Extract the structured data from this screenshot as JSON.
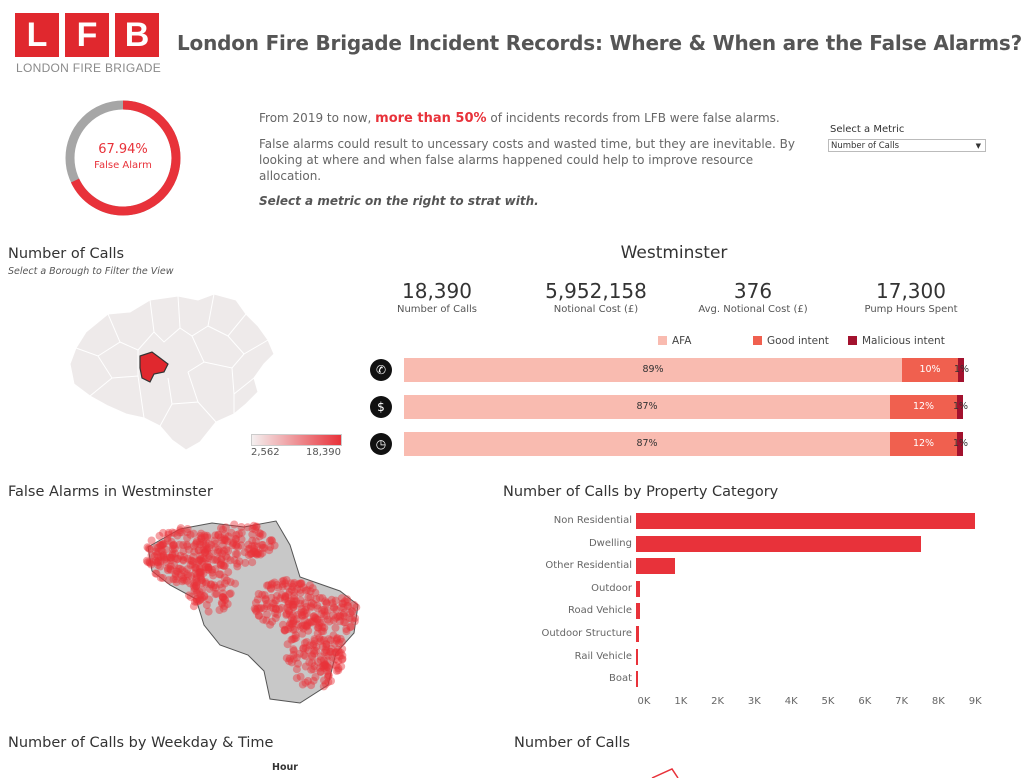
{
  "header": {
    "logo_letters": [
      "L",
      "F",
      "B"
    ],
    "logo_subtitle": "LONDON FIRE BRIGADE",
    "title": "London Fire Brigade Incident Records: Where & When are the False Alarms?"
  },
  "donut": {
    "value": 0.6794,
    "percent_text": "67.94%",
    "label": "False Alarm",
    "accent": "#e8323a",
    "track": "#a6a6a6"
  },
  "intro": {
    "line1_pre": "From 2019 to now, ",
    "line1_highlight": "more than 50%",
    "line1_post": " of incidents records from LFB were false alarms.",
    "line2": "False alarms could result to uncessary costs and wasted time, but they are inevitable. By looking at where and when false alarms happened could help to improve resource allocation.",
    "line3": "Select a metric on the right to strat with."
  },
  "metric_selector": {
    "label": "Select a Metric",
    "value": "Number of Calls"
  },
  "map_section": {
    "title": "Number of Calls",
    "subtitle": "Select a Borough to Filter  the View",
    "legend_min": "2,562",
    "legend_max": "18,390"
  },
  "borough": {
    "name": "Westminster",
    "kpis": [
      {
        "value": "18,390",
        "label": "Number of Calls"
      },
      {
        "value": "5,952,158",
        "label": "Notional Cost (£)"
      },
      {
        "value": "376",
        "label": "Avg. Notional Cost (£)"
      },
      {
        "value": "17,300",
        "label": "Pump Hours Spent"
      }
    ],
    "legend": [
      {
        "label": "AFA",
        "color": "#f9bbb0"
      },
      {
        "label": "Good intent",
        "color": "#f0604f"
      },
      {
        "label": "Malicious intent",
        "color": "#a3122e"
      }
    ],
    "rows": [
      {
        "icon": "phone-icon",
        "glyph": "✆",
        "values": [
          89,
          10,
          1
        ],
        "labels": [
          "89%",
          "10%",
          "1%"
        ]
      },
      {
        "icon": "money-icon",
        "glyph": "$",
        "values": [
          87,
          12,
          1
        ],
        "labels": [
          "87%",
          "12%",
          "1%"
        ]
      },
      {
        "icon": "clock-icon",
        "glyph": "◷",
        "values": [
          87,
          12,
          1
        ],
        "labels": [
          "87%",
          "12%",
          "1%"
        ]
      }
    ]
  },
  "false_alarms_map": {
    "title": "False Alarms in Westminster"
  },
  "property_chart": {
    "title": "Number of Calls by Property Category",
    "chart_data": {
      "type": "bar",
      "categories": [
        "Non Residential",
        "Dwelling",
        "Other Residential",
        "Outdoor",
        "Road Vehicle",
        "Outdoor Structure",
        "Rail Vehicle",
        "Boat"
      ],
      "values": [
        9200,
        7750,
        1050,
        110,
        100,
        80,
        15,
        10
      ],
      "xticks": [
        "0K",
        "1K",
        "2K",
        "3K",
        "4K",
        "5K",
        "6K",
        "7K",
        "8K",
        "9K"
      ],
      "xlim": [
        0,
        9500
      ],
      "grid": false
    }
  },
  "weekday_section": {
    "title": "Number of Calls by Weekday & Time",
    "hour_label": "Hour"
  },
  "calls_section": {
    "title": "Number of Calls"
  }
}
